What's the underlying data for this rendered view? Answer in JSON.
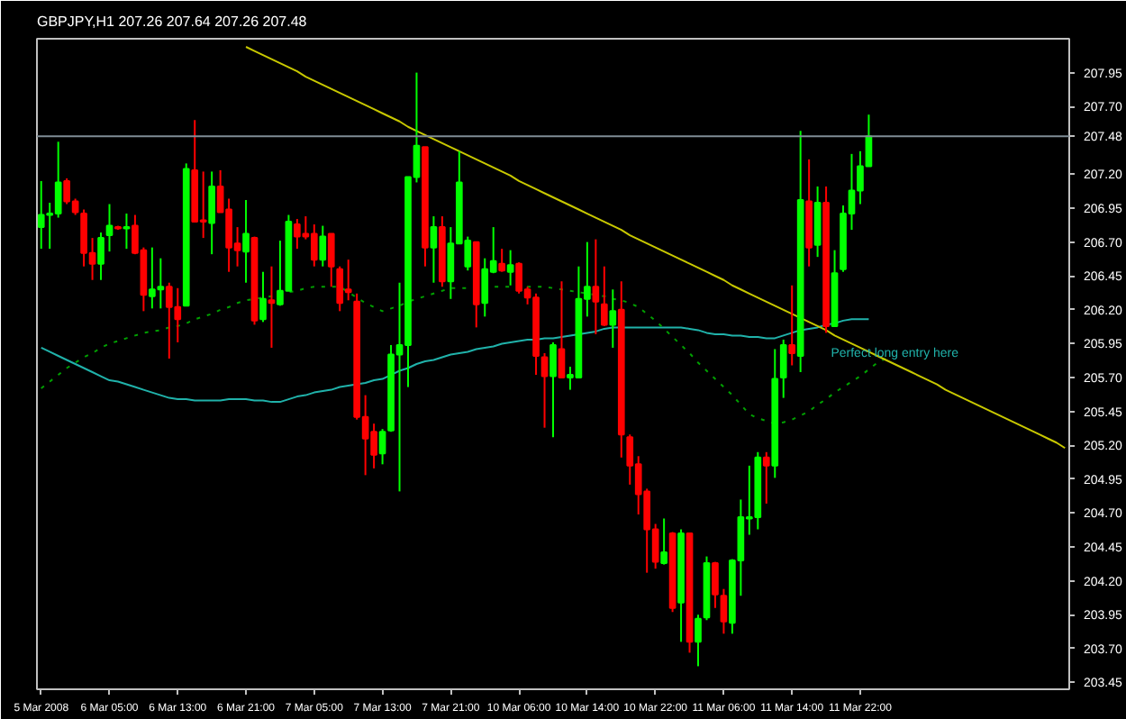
{
  "chart_data": {
    "type": "candlestick",
    "title": "GBPJPY,H1  207.26 207.64 207.26 207.48",
    "categories": [
      "5 Mar 2008",
      null,
      null,
      null,
      null,
      null,
      null,
      null,
      "6 Mar 05:00",
      null,
      null,
      null,
      null,
      null,
      null,
      null,
      "6 Mar 13:00",
      null,
      null,
      null,
      null,
      null,
      null,
      null,
      "6 Mar 21:00",
      null,
      null,
      null,
      null,
      null,
      null,
      null,
      "7 Mar 05:00",
      null,
      null,
      null,
      null,
      null,
      null,
      null,
      "7 Mar 13:00",
      null,
      null,
      null,
      null,
      null,
      null,
      null,
      "7 Mar 21:00",
      null,
      null,
      null,
      null,
      null,
      null,
      null,
      "10 Mar 06:00",
      null,
      null,
      null,
      null,
      null,
      null,
      null,
      "10 Mar 14:00",
      null,
      null,
      null,
      null,
      null,
      null,
      null,
      "10 Mar 22:00",
      null,
      null,
      null,
      null,
      null,
      null,
      null,
      "11 Mar 06:00",
      null,
      null,
      null,
      null,
      null,
      null,
      null,
      "11 Mar 14:00",
      null,
      null,
      null,
      null,
      null,
      null,
      null,
      "11 Mar 22:00",
      null,
      null,
      null,
      null,
      null,
      null,
      null,
      null,
      null,
      null,
      null,
      null,
      null,
      null,
      null,
      null,
      null,
      null,
      null,
      null,
      null,
      null,
      null,
      null
    ],
    "ohlc": [
      [
        206.81,
        207.15,
        206.65,
        206.9
      ],
      [
        206.9,
        206.99,
        206.65,
        206.91
      ],
      [
        206.91,
        207.44,
        206.88,
        207.14
      ],
      [
        207.15,
        207.17,
        206.98,
        207.0
      ],
      [
        207.0,
        207.02,
        206.9,
        206.92
      ],
      [
        206.91,
        206.94,
        206.52,
        206.62
      ],
      [
        206.62,
        206.73,
        206.42,
        206.54
      ],
      [
        206.54,
        206.77,
        206.42,
        206.73
      ],
      [
        206.75,
        206.98,
        206.63,
        206.82
      ],
      [
        206.81,
        206.82,
        206.79,
        206.8
      ],
      [
        206.8,
        206.91,
        206.65,
        206.81
      ],
      [
        206.82,
        206.9,
        206.61,
        206.62
      ],
      [
        206.64,
        206.66,
        206.19,
        206.31
      ],
      [
        206.3,
        206.66,
        206.21,
        206.35
      ],
      [
        206.35,
        206.58,
        206.21,
        206.37
      ],
      [
        206.37,
        206.4,
        205.84,
        206.22
      ],
      [
        206.22,
        206.36,
        205.96,
        206.13
      ],
      [
        206.23,
        207.28,
        206.23,
        207.24
      ],
      [
        207.23,
        207.6,
        206.85,
        206.85
      ],
      [
        206.86,
        207.22,
        206.73,
        206.85
      ],
      [
        206.84,
        207.22,
        206.61,
        207.11
      ],
      [
        207.11,
        207.23,
        206.92,
        206.92
      ],
      [
        206.94,
        207.02,
        206.48,
        206.66
      ],
      [
        206.69,
        206.81,
        206.52,
        206.64
      ],
      [
        206.63,
        207.01,
        206.4,
        206.76
      ],
      [
        206.73,
        206.74,
        206.09,
        206.12
      ],
      [
        206.13,
        206.48,
        206.11,
        206.28
      ],
      [
        206.27,
        206.52,
        205.92,
        206.25
      ],
      [
        206.24,
        206.71,
        206.23,
        206.34
      ],
      [
        206.34,
        206.9,
        206.34,
        206.85
      ],
      [
        206.83,
        206.87,
        206.65,
        206.74
      ],
      [
        206.76,
        206.89,
        206.72,
        206.74
      ],
      [
        206.76,
        206.83,
        206.52,
        206.57
      ],
      [
        206.57,
        206.82,
        206.52,
        206.74
      ],
      [
        206.76,
        206.76,
        206.37,
        206.52
      ],
      [
        206.5,
        206.52,
        206.19,
        206.25
      ],
      [
        206.35,
        206.57,
        206.27,
        206.33
      ],
      [
        206.26,
        206.32,
        205.39,
        205.41
      ],
      [
        205.41,
        205.57,
        204.98,
        205.25
      ],
      [
        205.3,
        205.36,
        205.03,
        205.13
      ],
      [
        205.14,
        205.32,
        205.06,
        205.3
      ],
      [
        205.31,
        205.94,
        205.3,
        205.87
      ],
      [
        205.87,
        206.4,
        204.86,
        205.94
      ],
      [
        205.94,
        207.18,
        205.63,
        207.18
      ],
      [
        207.18,
        207.95,
        207.14,
        207.41
      ],
      [
        207.4,
        207.4,
        206.52,
        206.66
      ],
      [
        206.66,
        206.89,
        206.4,
        206.81
      ],
      [
        206.81,
        206.89,
        206.37,
        206.41
      ],
      [
        206.41,
        206.81,
        206.28,
        206.69
      ],
      [
        206.69,
        207.37,
        206.69,
        207.14
      ],
      [
        206.52,
        206.74,
        206.49,
        206.71
      ],
      [
        206.7,
        206.7,
        206.07,
        206.24
      ],
      [
        206.25,
        206.58,
        206.15,
        206.5
      ],
      [
        206.48,
        206.81,
        206.47,
        206.56
      ],
      [
        206.54,
        206.65,
        206.48,
        206.49
      ],
      [
        206.48,
        206.64,
        206.38,
        206.53
      ],
      [
        206.54,
        206.55,
        206.32,
        206.34
      ],
      [
        206.35,
        206.37,
        206.24,
        206.29
      ],
      [
        206.29,
        206.32,
        205.72,
        205.86
      ],
      [
        205.85,
        205.88,
        205.33,
        205.71
      ],
      [
        205.71,
        205.96,
        205.26,
        205.94
      ],
      [
        205.91,
        206.41,
        205.7,
        205.7
      ],
      [
        205.7,
        205.78,
        205.61,
        205.72
      ],
      [
        205.7,
        206.52,
        205.7,
        206.28
      ],
      [
        206.28,
        206.7,
        206.15,
        206.37
      ],
      [
        206.37,
        206.72,
        206.02,
        206.26
      ],
      [
        206.24,
        206.52,
        206.08,
        206.09
      ],
      [
        206.09,
        206.35,
        205.92,
        206.19
      ],
      [
        206.2,
        206.41,
        205.11,
        205.28
      ],
      [
        205.26,
        205.28,
        204.91,
        205.05
      ],
      [
        205.06,
        205.12,
        204.69,
        204.84
      ],
      [
        204.86,
        204.88,
        204.26,
        204.58
      ],
      [
        204.58,
        204.62,
        204.29,
        204.34
      ],
      [
        204.33,
        204.66,
        204.32,
        204.41
      ],
      [
        204.55,
        204.56,
        203.97,
        204.0
      ],
      [
        204.04,
        204.58,
        203.75,
        204.55
      ],
      [
        204.55,
        204.55,
        203.67,
        203.75
      ],
      [
        203.75,
        203.95,
        203.57,
        203.92
      ],
      [
        203.93,
        204.38,
        203.91,
        204.33
      ],
      [
        204.33,
        204.34,
        204.0,
        204.1
      ],
      [
        204.09,
        204.14,
        203.81,
        203.9
      ],
      [
        203.89,
        204.36,
        203.81,
        204.35
      ],
      [
        204.35,
        204.8,
        204.09,
        204.67
      ],
      [
        204.66,
        205.05,
        204.54,
        204.67
      ],
      [
        204.67,
        205.15,
        204.58,
        205.11
      ],
      [
        205.11,
        205.15,
        204.77,
        205.05
      ],
      [
        205.05,
        205.91,
        204.96,
        205.69
      ],
      [
        205.7,
        205.98,
        205.55,
        205.94
      ],
      [
        205.94,
        206.38,
        205.79,
        205.88
      ],
      [
        205.86,
        207.52,
        205.74,
        207.01
      ],
      [
        207.0,
        207.31,
        206.52,
        206.66
      ],
      [
        206.68,
        207.11,
        206.59,
        206.99
      ],
      [
        206.99,
        207.11,
        206.03,
        206.08
      ],
      [
        206.08,
        206.64,
        206.08,
        206.47
      ],
      [
        206.5,
        206.97,
        206.48,
        206.91
      ],
      [
        206.91,
        207.35,
        206.79,
        207.08
      ],
      [
        207.08,
        207.37,
        206.98,
        207.26
      ],
      [
        207.26,
        207.64,
        207.26,
        207.48
      ],
      null,
      null,
      null,
      null,
      null,
      null,
      null,
      null,
      null,
      null,
      null,
      null,
      null,
      null,
      null,
      null,
      null,
      null,
      null,
      null,
      null,
      null,
      null
    ],
    "series": [
      {
        "type": "line",
        "color": "#20b2aa",
        "line_style": "solid",
        "values": [
          205.92,
          205.89,
          205.86,
          205.83,
          205.8,
          205.77,
          205.74,
          205.71,
          205.68,
          205.67,
          205.65,
          205.63,
          205.61,
          205.59,
          205.57,
          205.55,
          205.54,
          205.54,
          205.53,
          205.53,
          205.53,
          205.53,
          205.54,
          205.54,
          205.54,
          205.53,
          205.53,
          205.52,
          205.52,
          205.54,
          205.56,
          205.57,
          205.59,
          205.6,
          205.61,
          205.63,
          205.64,
          205.65,
          205.66,
          205.68,
          205.69,
          205.72,
          205.75,
          205.77,
          205.8,
          205.82,
          205.83,
          205.85,
          205.87,
          205.88,
          205.89,
          205.91,
          205.92,
          205.93,
          205.95,
          205.96,
          205.97,
          205.98,
          205.98,
          205.99,
          205.99,
          206.0,
          206.01,
          206.02,
          206.03,
          206.04,
          206.06,
          206.07,
          206.07,
          206.07,
          206.07,
          206.07,
          206.07,
          206.07,
          206.07,
          206.07,
          206.06,
          206.05,
          206.03,
          206.02,
          206.02,
          206.01,
          206.01,
          206.0,
          206.0,
          205.99,
          205.99,
          206.01,
          206.03,
          206.05,
          206.06,
          206.07,
          206.09,
          206.1,
          206.12,
          206.13,
          206.13,
          206.13,
          null,
          null,
          null,
          null,
          null,
          null,
          null,
          null,
          null,
          null,
          null,
          null,
          null,
          null,
          null,
          null,
          null,
          null,
          null,
          null,
          null,
          null,
          null
        ]
      },
      {
        "type": "line",
        "color": "#00a000",
        "line_style": "dotted",
        "values": [
          205.62,
          205.67,
          205.72,
          205.77,
          205.81,
          205.85,
          205.88,
          205.92,
          205.95,
          205.97,
          205.99,
          206.01,
          206.03,
          206.04,
          206.05,
          206.07,
          206.08,
          206.1,
          206.13,
          206.15,
          206.17,
          206.2,
          206.22,
          206.25,
          206.27,
          206.28,
          206.29,
          206.3,
          206.31,
          206.33,
          206.34,
          206.36,
          206.37,
          206.37,
          206.37,
          206.37,
          206.33,
          206.29,
          206.25,
          206.22,
          206.19,
          206.21,
          206.23,
          206.26,
          206.28,
          206.3,
          206.32,
          206.34,
          206.36,
          206.36,
          206.36,
          206.37,
          206.37,
          206.37,
          206.37,
          206.37,
          206.37,
          206.37,
          206.37,
          206.37,
          206.36,
          206.35,
          206.34,
          206.33,
          206.32,
          206.31,
          206.3,
          206.28,
          206.27,
          206.25,
          206.22,
          206.17,
          206.12,
          206.06,
          206.0,
          205.94,
          205.88,
          205.81,
          205.75,
          205.69,
          205.63,
          205.57,
          205.5,
          205.43,
          205.4,
          205.38,
          205.36,
          205.37,
          205.39,
          205.42,
          205.45,
          205.5,
          205.54,
          205.59,
          205.63,
          205.67,
          205.71,
          205.76,
          205.81,
          205.84,
          null,
          null,
          null,
          null,
          null,
          null,
          null,
          null,
          null,
          null,
          null,
          null,
          null,
          null,
          null,
          null,
          null,
          null,
          null,
          null,
          null
        ]
      },
      {
        "type": "line",
        "color": "#c8c800",
        "line_style": "solid",
        "values": [
          null,
          null,
          null,
          null,
          null,
          null,
          null,
          null,
          null,
          null,
          null,
          null,
          null,
          null,
          null,
          null,
          null,
          null,
          null,
          null,
          null,
          null,
          null,
          null,
          208.14,
          208.11,
          208.08,
          208.05,
          208.02,
          207.99,
          207.96,
          207.92,
          207.89,
          207.86,
          207.83,
          207.8,
          207.77,
          207.74,
          207.71,
          207.68,
          207.65,
          207.62,
          207.59,
          207.55,
          207.52,
          207.49,
          207.46,
          207.43,
          207.4,
          207.37,
          207.34,
          207.31,
          207.28,
          207.25,
          207.22,
          207.19,
          207.15,
          207.12,
          207.09,
          207.06,
          207.03,
          207.0,
          206.97,
          206.94,
          206.91,
          206.88,
          206.85,
          206.82,
          206.79,
          206.75,
          206.72,
          206.69,
          206.66,
          206.63,
          206.6,
          206.57,
          206.54,
          206.51,
          206.48,
          206.45,
          206.42,
          206.38,
          206.35,
          206.32,
          206.29,
          206.26,
          206.23,
          206.2,
          206.17,
          206.14,
          206.11,
          206.08,
          206.05,
          206.01,
          205.98,
          205.95,
          205.92,
          205.89,
          205.86,
          205.83,
          205.8,
          205.77,
          205.74,
          205.71,
          205.68,
          205.65,
          205.61,
          205.58,
          205.55,
          205.52,
          205.49,
          205.46,
          205.43,
          205.4,
          205.37,
          205.34,
          205.31,
          205.28,
          205.25,
          205.22,
          205.18
        ]
      }
    ],
    "ref_lines": [
      {
        "axis": "y",
        "value": 207.48,
        "label": "207.48",
        "color": "#7f8c96"
      }
    ],
    "annotations": [
      "Perfect long entry here"
    ],
    "ylim": [
      203.4,
      208.2
    ],
    "yticks": [
      {
        "value": 203.45,
        "label": "203.45"
      },
      {
        "value": 203.7,
        "label": "203.70"
      },
      {
        "value": 203.95,
        "label": "203.95"
      },
      {
        "value": 204.2,
        "label": "204.20"
      },
      {
        "value": 204.45,
        "label": "204.45"
      },
      {
        "value": 204.7,
        "label": "204.70"
      },
      {
        "value": 204.95,
        "label": "204.95"
      },
      {
        "value": 205.2,
        "label": "205.20"
      },
      {
        "value": 205.45,
        "label": "205.45"
      },
      {
        "value": 205.7,
        "label": "205.70"
      },
      {
        "value": 205.95,
        "label": "205.95"
      },
      {
        "value": 206.2,
        "label": "206.20"
      },
      {
        "value": 206.45,
        "label": "206.45"
      },
      {
        "value": 206.7,
        "label": "206.70"
      },
      {
        "value": 206.95,
        "label": "206.95"
      },
      {
        "value": 207.2,
        "label": "207.20"
      },
      {
        "value": 207.7,
        "label": "207.70"
      },
      {
        "value": 207.95,
        "label": "207.95"
      }
    ],
    "grid": false
  }
}
